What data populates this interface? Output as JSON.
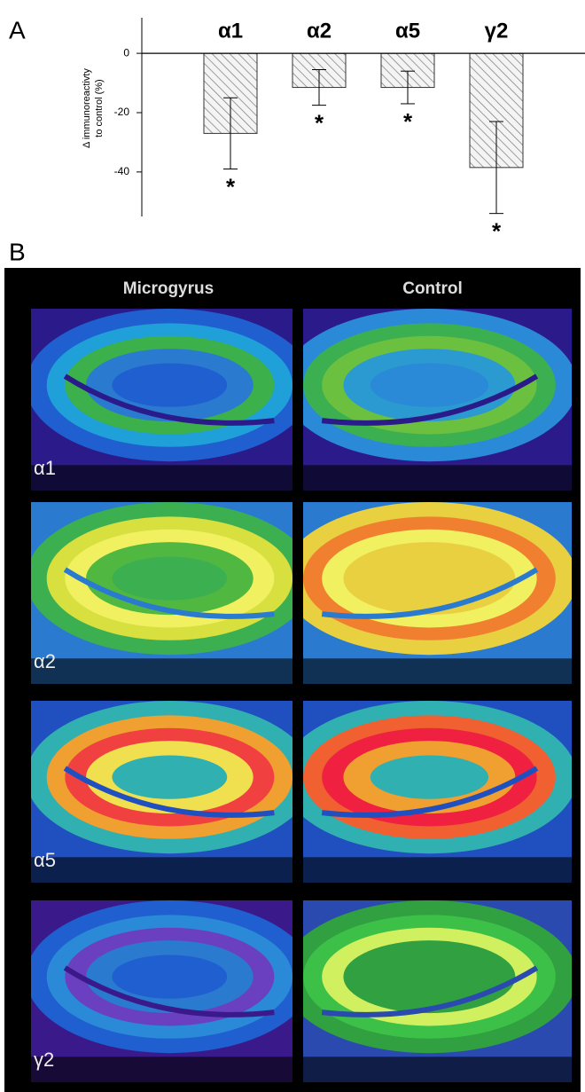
{
  "panel_labels": [
    "A",
    "B"
  ],
  "chart_data": {
    "type": "bar",
    "ylabel": [
      "Δ immunoreactivty",
      "to control (%)"
    ],
    "categories": [
      "α1",
      "α2",
      "α5",
      "γ2"
    ],
    "values": [
      -27,
      -11.5,
      -11.5,
      -38.5
    ],
    "errors": [
      12,
      6,
      5.5,
      15.5
    ],
    "annotations": [
      "*",
      "*",
      "*",
      "*"
    ],
    "ylim": [
      -55,
      12
    ],
    "yticks": [
      0,
      -20,
      -40
    ]
  },
  "panel_b": {
    "column_labels": [
      "Microgyrus",
      "Control"
    ],
    "row_labels": [
      "α1",
      "α2",
      "α5",
      "γ2"
    ]
  }
}
